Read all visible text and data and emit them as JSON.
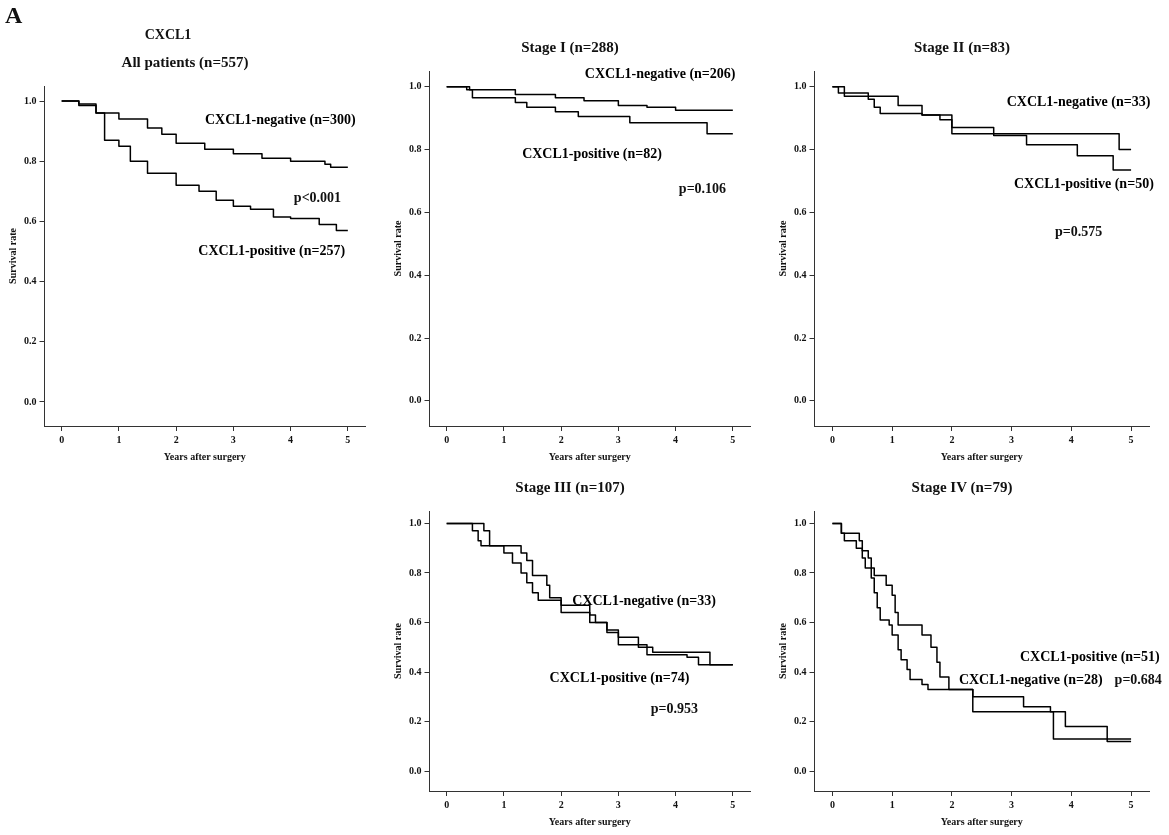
{
  "chart_data": [
    {
      "type": "step",
      "title": "All patients (n=557)",
      "xlabel": "Years after surgery",
      "ylabel": "Survival rate",
      "xlim": [
        -0.3,
        5.3
      ],
      "ylim": [
        -0.08,
        1.05
      ],
      "xticks": [
        0,
        1,
        2,
        3,
        4,
        5
      ],
      "yticks": [
        {
          "value": 0,
          "label": "0.0"
        },
        {
          "value": 0.2,
          "label": "0.2"
        },
        {
          "value": 0.4,
          "label": "0.4"
        },
        {
          "value": 0.6,
          "label": "0.6"
        },
        {
          "value": 0.8,
          "label": "0.8"
        },
        {
          "value": 1,
          "label": "1.0"
        }
      ],
      "series": [
        {
          "name": "CXCL1-negative (n=300)",
          "color": "#000000",
          "x": [
            0,
            0.3,
            0.6,
            1,
            1.5,
            1.75,
            2,
            2.5,
            3,
            3.5,
            4,
            4.6,
            4.7,
            5
          ],
          "values": [
            1,
            0.99,
            0.96,
            0.94,
            0.91,
            0.89,
            0.86,
            0.84,
            0.825,
            0.81,
            0.8,
            0.79,
            0.78,
            0.78
          ]
        },
        {
          "name": "CXCL1-positive (n=257)",
          "color": "#000000",
          "x": [
            0,
            0.3,
            0.6,
            0.75,
            1,
            1.2,
            1.5,
            2,
            2.4,
            2.7,
            3,
            3.3,
            3.7,
            4,
            4.5,
            4.8,
            5
          ],
          "values": [
            1,
            0.985,
            0.96,
            0.87,
            0.85,
            0.8,
            0.76,
            0.72,
            0.7,
            0.67,
            0.65,
            0.64,
            0.615,
            0.61,
            0.59,
            0.57,
            0.57
          ]
        }
      ],
      "annotations": [
        "A",
        "CXCL1",
        "p<0.001"
      ]
    },
    {
      "type": "step",
      "title": "Stage I (n=288)",
      "xlabel": "Years after surgery",
      "ylabel": "Survival rate",
      "xlim": [
        -0.3,
        5.3
      ],
      "ylim": [
        -0.08,
        1.05
      ],
      "xticks": [
        0,
        1,
        2,
        3,
        4,
        5
      ],
      "yticks": [
        {
          "value": 0,
          "label": "0.0"
        },
        {
          "value": 0.2,
          "label": "0.2"
        },
        {
          "value": 0.4,
          "label": "0.4"
        },
        {
          "value": 0.6,
          "label": "0.6"
        },
        {
          "value": 0.8,
          "label": "0.8"
        },
        {
          "value": 1,
          "label": "1.0"
        }
      ],
      "series": [
        {
          "name": "CXCL1-negative (n=206)",
          "color": "#000000",
          "x": [
            0,
            0.4,
            1.2,
            1.9,
            2.4,
            3,
            3.5,
            4,
            5
          ],
          "values": [
            1,
            0.99,
            0.975,
            0.965,
            0.955,
            0.94,
            0.935,
            0.925,
            0.925
          ]
        },
        {
          "name": "CXCL1-positive (n=82)",
          "color": "#000000",
          "x": [
            0,
            0.35,
            0.45,
            1.2,
            1.4,
            1.9,
            2.3,
            3.2,
            4.55,
            5
          ],
          "values": [
            1,
            0.99,
            0.965,
            0.95,
            0.935,
            0.92,
            0.905,
            0.885,
            0.85,
            0.85
          ]
        }
      ],
      "annotations": [
        "p=0.106"
      ]
    },
    {
      "type": "step",
      "title": "Stage II (n=83)",
      "xlabel": "Years after surgery",
      "ylabel": "Survival rate",
      "xlim": [
        -0.3,
        5.3
      ],
      "ylim": [
        -0.08,
        1.05
      ],
      "xticks": [
        0,
        1,
        2,
        3,
        4,
        5
      ],
      "yticks": [
        {
          "value": 0,
          "label": "0.0"
        },
        {
          "value": 0.2,
          "label": "0.2"
        },
        {
          "value": 0.4,
          "label": "0.4"
        },
        {
          "value": 0.6,
          "label": "0.6"
        },
        {
          "value": 0.8,
          "label": "0.8"
        },
        {
          "value": 1,
          "label": "1.0"
        }
      ],
      "series": [
        {
          "name": "CXCL1-negative (n=33)",
          "color": "#000000",
          "x": [
            0,
            0.2,
            1.1,
            1.5,
            2,
            4.8,
            5
          ],
          "values": [
            1,
            0.97,
            0.94,
            0.91,
            0.85,
            0.8,
            0.8
          ]
        },
        {
          "name": "CXCL1-positive (n=50)",
          "color": "#000000",
          "x": [
            0,
            0.1,
            0.6,
            0.7,
            0.8,
            1.5,
            1.8,
            2,
            2.7,
            3.25,
            4.1,
            4.7,
            5
          ],
          "values": [
            1,
            0.98,
            0.96,
            0.935,
            0.915,
            0.91,
            0.895,
            0.87,
            0.845,
            0.815,
            0.78,
            0.735,
            0.735
          ]
        }
      ],
      "annotations": [
        "p=0.575"
      ]
    },
    {
      "type": "step",
      "title": "Stage III (n=107)",
      "xlabel": "Years after surgery",
      "ylabel": "Survival rate",
      "xlim": [
        -0.3,
        5.3
      ],
      "ylim": [
        -0.08,
        1.05
      ],
      "xticks": [
        0,
        1,
        2,
        3,
        4,
        5
      ],
      "yticks": [
        {
          "value": 0,
          "label": "0.0"
        },
        {
          "value": 0.2,
          "label": "0.2"
        },
        {
          "value": 0.4,
          "label": "0.4"
        },
        {
          "value": 0.6,
          "label": "0.6"
        },
        {
          "value": 0.8,
          "label": "0.8"
        },
        {
          "value": 1,
          "label": "1.0"
        }
      ],
      "series": [
        {
          "name": "CXCL1-negative (n=33)",
          "color": "#000000",
          "x": [
            0,
            0.45,
            0.55,
            0.6,
            1.2,
            1.3,
            1.4,
            1.5,
            1.75,
            1.8,
            2,
            2.3,
            2.5,
            2.8,
            3,
            3.35,
            3.6,
            4.2,
            4.6,
            5
          ],
          "values": [
            1,
            0.97,
            0.93,
            0.91,
            0.91,
            0.88,
            0.85,
            0.79,
            0.75,
            0.7,
            0.64,
            0.64,
            0.6,
            0.56,
            0.54,
            0.5,
            0.48,
            0.48,
            0.43,
            0.43
          ]
        },
        {
          "name": "CXCL1-positive (n=74)",
          "color": "#000000",
          "x": [
            0,
            0.6,
            0.65,
            0.75,
            1,
            1.15,
            1.3,
            1.4,
            1.5,
            1.6,
            2,
            2.5,
            2.6,
            2.8,
            3,
            3.5,
            4.2,
            4.4,
            5
          ],
          "values": [
            1,
            1,
            0.97,
            0.91,
            0.88,
            0.84,
            0.8,
            0.76,
            0.72,
            0.69,
            0.67,
            0.63,
            0.6,
            0.57,
            0.51,
            0.47,
            0.46,
            0.43,
            0.43
          ]
        }
      ],
      "annotations": [
        "p=0.953"
      ]
    },
    {
      "type": "step",
      "title": "Stage IV (n=79)",
      "xlabel": "Years after surgery",
      "ylabel": "Survival rate",
      "xlim": [
        -0.3,
        5.3
      ],
      "ylim": [
        -0.08,
        1.05
      ],
      "xticks": [
        0,
        1,
        2,
        3,
        4,
        5
      ],
      "yticks": [
        {
          "value": 0,
          "label": "0.0"
        },
        {
          "value": 0.2,
          "label": "0.2"
        },
        {
          "value": 0.4,
          "label": "0.4"
        },
        {
          "value": 0.6,
          "label": "0.6"
        },
        {
          "value": 0.8,
          "label": "0.8"
        },
        {
          "value": 1,
          "label": "1.0"
        }
      ],
      "series": [
        {
          "name": "CXCL1-positive (n=51)",
          "color": "#000000",
          "x": [
            0,
            0.15,
            0.2,
            0.4,
            0.5,
            0.55,
            0.65,
            0.7,
            0.75,
            0.8,
            0.95,
            1,
            1.1,
            1.15,
            1.25,
            1.3,
            1.5,
            1.6,
            2.35,
            3.2,
            3.65,
            3.9,
            4.6,
            5
          ],
          "values": [
            1,
            0.96,
            0.93,
            0.9,
            0.86,
            0.82,
            0.78,
            0.72,
            0.66,
            0.61,
            0.59,
            0.55,
            0.49,
            0.45,
            0.41,
            0.37,
            0.35,
            0.33,
            0.3,
            0.26,
            0.24,
            0.18,
            0.12,
            0.12
          ]
        },
        {
          "name": "CXCL1-negative (n=28)",
          "color": "#000000",
          "x": [
            0,
            0.15,
            0.45,
            0.5,
            0.6,
            0.65,
            0.7,
            0.9,
            1,
            1.05,
            1.1,
            1.5,
            1.65,
            1.75,
            1.8,
            1.95,
            2.35,
            3.7,
            5
          ],
          "values": [
            1,
            0.96,
            0.93,
            0.89,
            0.86,
            0.82,
            0.79,
            0.75,
            0.71,
            0.64,
            0.59,
            0.55,
            0.5,
            0.44,
            0.38,
            0.33,
            0.24,
            0.13,
            0.13
          ]
        }
      ],
      "annotations": [
        "p=0.684"
      ]
    }
  ]
}
